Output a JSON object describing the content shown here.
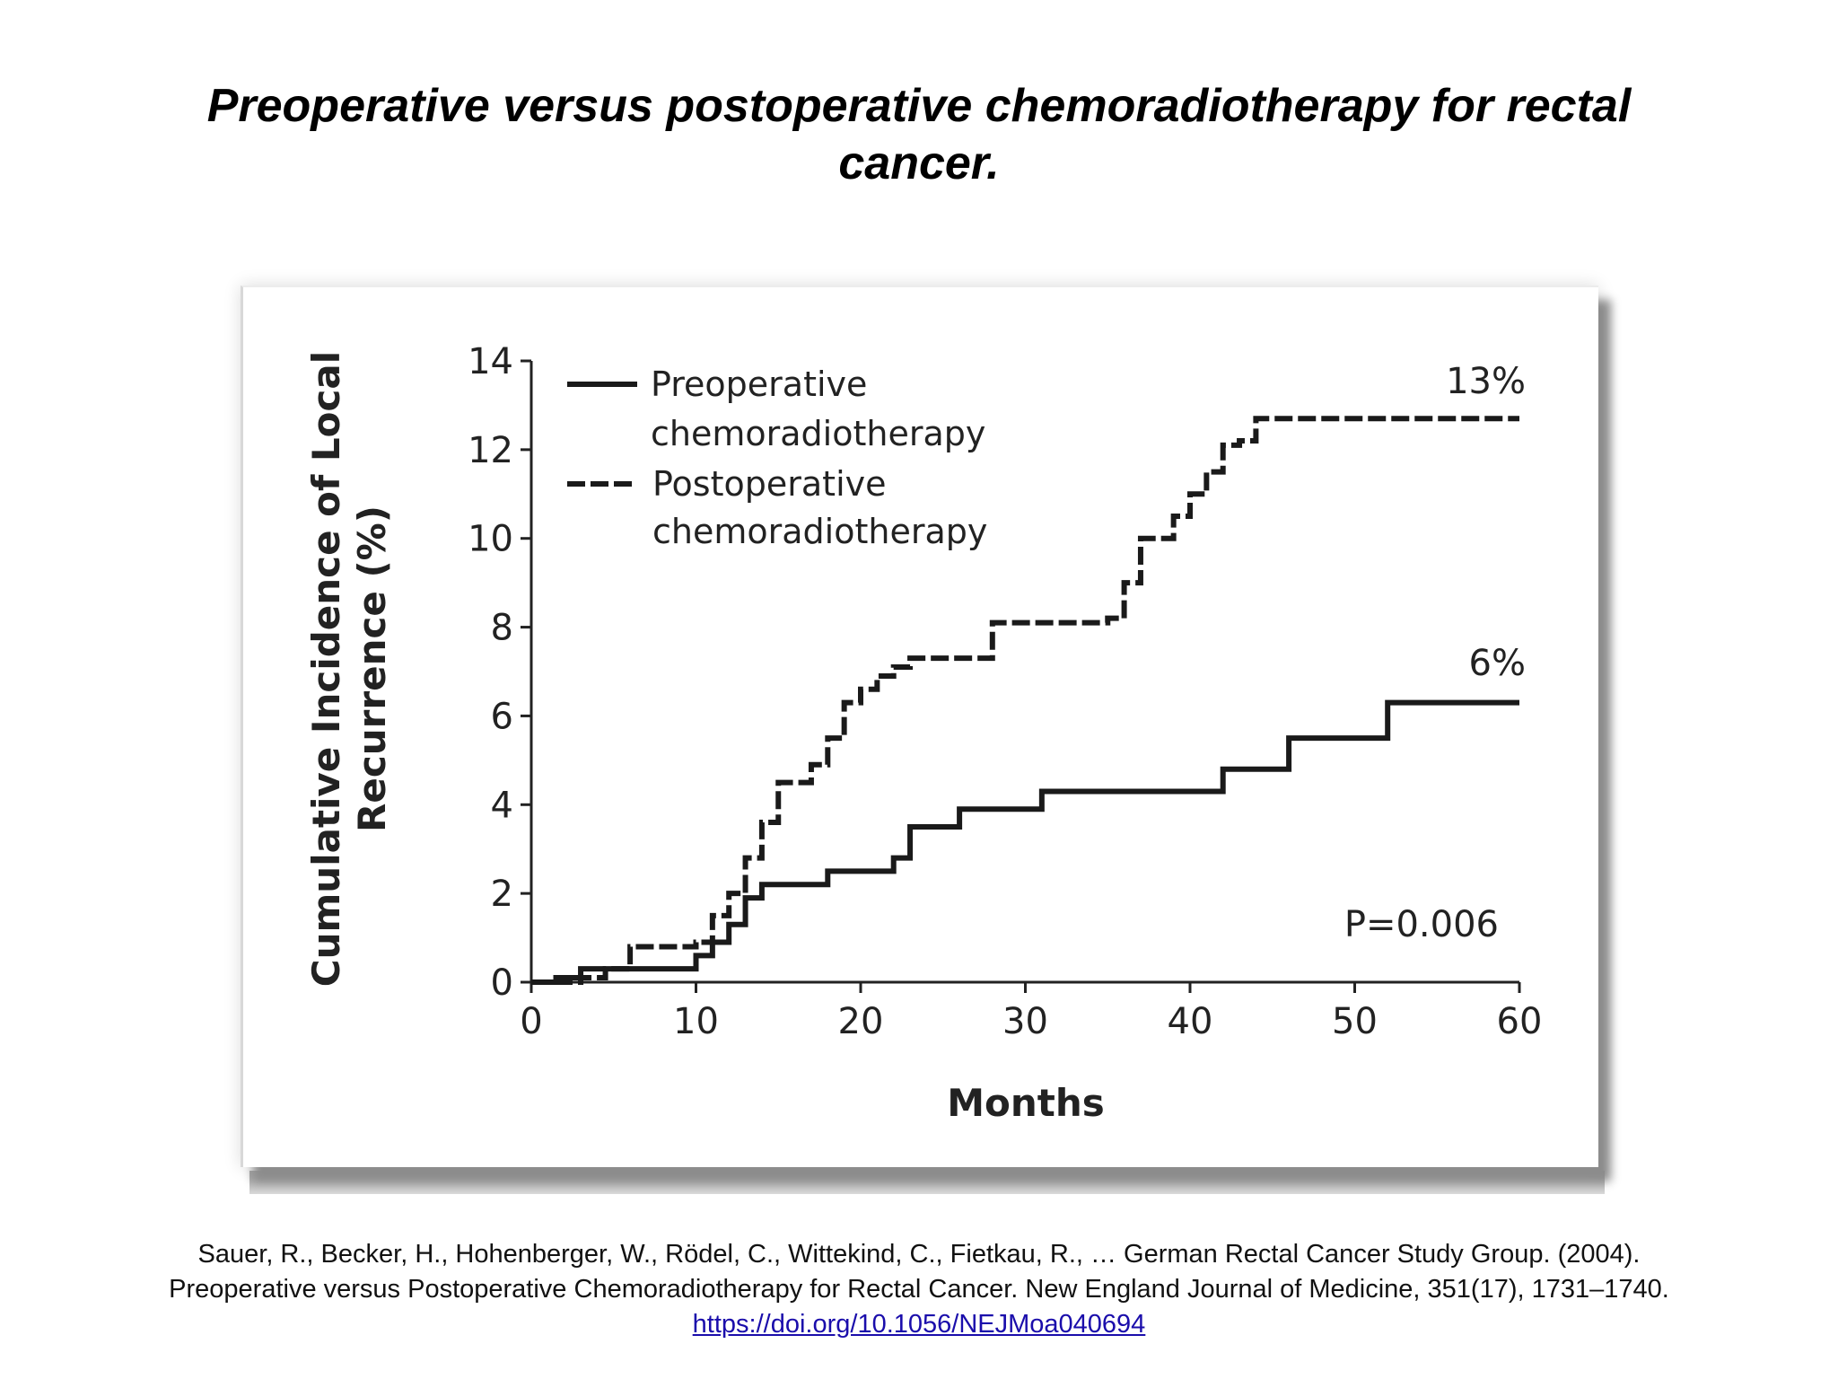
{
  "slide": {
    "title_line1": "Preoperative versus postoperative chemoradiotherapy for rectal",
    "title_line2": "cancer."
  },
  "citation": {
    "line1": "Sauer, R., Becker, H., Hohenberger, W., Rödel, C., Wittekind, C., Fietkau, R., … German Rectal Cancer Study Group. (2004).",
    "line2": "Preoperative versus Postoperative Chemoradiotherapy for Rectal Cancer. New England Journal of Medicine, 351(17), 1731–1740.",
    "link": "https://doi.org/10.1056/NEJMoa040694"
  },
  "colors": {
    "line": "#1a1a1a",
    "link": "#1a0dab"
  },
  "chart_data": {
    "type": "line",
    "title": "",
    "xlabel": "Months",
    "ylabel_line1": "Cumulative Incidence of Local",
    "ylabel_line2": "Recurrence (%)",
    "xlim": [
      0,
      60
    ],
    "ylim": [
      0,
      14
    ],
    "xticks": [
      "0",
      "10",
      "20",
      "30",
      "40",
      "50",
      "60"
    ],
    "yticks": [
      "0",
      "2",
      "4",
      "6",
      "8",
      "10",
      "12",
      "14"
    ],
    "grid": false,
    "legend_position": "top-left",
    "annotation": "P=0.006",
    "series": [
      {
        "name_line1": "Preoperative",
        "name_line2": "chemoradiotherapy",
        "style": "solid",
        "end_label": "6%",
        "x": [
          0,
          1.5,
          3,
          5,
          7,
          9,
          10,
          11,
          12,
          13,
          14,
          18,
          22,
          23,
          26,
          31,
          42,
          46,
          52,
          60
        ],
        "y": [
          0,
          0.1,
          0.3,
          0.3,
          0.3,
          0.3,
          0.6,
          0.9,
          1.3,
          1.9,
          2.2,
          2.5,
          2.8,
          3.5,
          3.9,
          4.3,
          4.8,
          5.5,
          6.3,
          6.3
        ]
      },
      {
        "name_line1": "Postoperative",
        "name_line2": "chemoradiotherapy",
        "style": "dashed",
        "end_label": "13%",
        "x": [
          0,
          3,
          4.5,
          6,
          8,
          10,
          11,
          12,
          13,
          14,
          15,
          17,
          18,
          19,
          20,
          21,
          22,
          23,
          28,
          35,
          36,
          37,
          38,
          39,
          40,
          41,
          42,
          43,
          44,
          60
        ],
        "y": [
          0,
          0.1,
          0.3,
          0.8,
          0.8,
          0.9,
          1.5,
          2.0,
          2.8,
          3.6,
          4.5,
          4.9,
          5.5,
          6.3,
          6.6,
          6.9,
          7.1,
          7.3,
          8.1,
          8.2,
          9.0,
          10.0,
          10.0,
          10.5,
          11.0,
          11.5,
          12.1,
          12.2,
          12.7,
          12.7
        ]
      }
    ]
  }
}
